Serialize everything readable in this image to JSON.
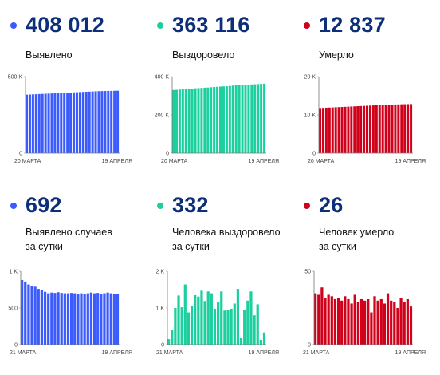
{
  "panels": [
    {
      "color": "#3b5bfd",
      "value": "408 012",
      "label": [
        "Выявлено"
      ],
      "chart_data": {
        "type": "bar",
        "y_ticks": [
          "0",
          "500 K"
        ],
        "ylim": [
          0,
          500000
        ],
        "x_start_label": "20 МАРТА",
        "x_end_label": "19 АПРЕЛЯ",
        "values": [
          382000,
          383000,
          384000,
          385000,
          386000,
          387000,
          388000,
          389000,
          390000,
          391000,
          392000,
          393000,
          394000,
          395000,
          396000,
          397000,
          398000,
          399000,
          400000,
          401000,
          402000,
          403000,
          404000,
          405000,
          405500,
          406000,
          406500,
          407000,
          407500,
          408012
        ]
      }
    },
    {
      "color": "#1ccf9f",
      "value": "363 116",
      "label": [
        "Выздоровело"
      ],
      "chart_data": {
        "type": "bar",
        "y_ticks": [
          "0",
          "200 K",
          "400 K"
        ],
        "ylim": [
          0,
          400000
        ],
        "x_start_label": "20 МАРТА",
        "x_end_label": "19 АПРЕЛЯ",
        "values": [
          330000,
          331000,
          332500,
          334000,
          335000,
          336000,
          337500,
          339000,
          340000,
          341000,
          342000,
          343000,
          344500,
          346000,
          347000,
          348000,
          349000,
          350000,
          351500,
          353000,
          354000,
          355000,
          356000,
          357000,
          358000,
          359000,
          360000,
          361000,
          362000,
          363116
        ]
      }
    },
    {
      "color": "#d0021b",
      "value": "12 837",
      "label": [
        "Умерло"
      ],
      "chart_data": {
        "type": "bar",
        "y_ticks": [
          "0",
          "10 K",
          "20 K"
        ],
        "ylim": [
          0,
          20000
        ],
        "x_start_label": "20 МАРТА",
        "x_end_label": "19 АПРЕЛЯ",
        "values": [
          11800,
          11840,
          11880,
          11920,
          11960,
          12000,
          12040,
          12080,
          12120,
          12160,
          12200,
          12240,
          12280,
          12320,
          12360,
          12400,
          12440,
          12480,
          12520,
          12560,
          12600,
          12630,
          12660,
          12690,
          12720,
          12750,
          12780,
          12800,
          12820,
          12837
        ]
      }
    },
    {
      "color": "#3b5bfd",
      "value": "692",
      "label": [
        "Выявлено случаев",
        "за сутки"
      ],
      "chart_data": {
        "type": "bar",
        "y_ticks": [
          "0",
          "500",
          "1 K"
        ],
        "ylim": [
          0,
          1000
        ],
        "x_start_label": "21 МАРТА",
        "x_end_label": "19 АПРЕЛЯ",
        "values": [
          880,
          860,
          820,
          800,
          790,
          760,
          740,
          720,
          700,
          710,
          705,
          715,
          705,
          700,
          700,
          705,
          700,
          695,
          700,
          690,
          700,
          710,
          700,
          705,
          695,
          700,
          710,
          700,
          690,
          692
        ]
      }
    },
    {
      "color": "#1ccf9f",
      "value": "332",
      "label": [
        "Человека выздоровело",
        "за сутки"
      ],
      "chart_data": {
        "type": "bar",
        "y_ticks": [
          "0",
          "1 K",
          "2 K"
        ],
        "ylim": [
          0,
          2000
        ],
        "x_start_label": "21 МАРТА",
        "x_end_label": "19 АПРЕЛЯ",
        "values": [
          150,
          400,
          1000,
          1340,
          1020,
          1640,
          880,
          1050,
          1350,
          1310,
          1470,
          1190,
          1450,
          1400,
          980,
          1150,
          1450,
          930,
          950,
          980,
          1120,
          1520,
          180,
          950,
          1200,
          1450,
          800,
          1100,
          130,
          332
        ]
      }
    },
    {
      "color": "#d0021b",
      "value": "26",
      "label": [
        "Человек умерло",
        "за сутки"
      ],
      "chart_data": {
        "type": "bar",
        "y_ticks": [
          "0",
          "50"
        ],
        "ylim": [
          0,
          50
        ],
        "x_start_label": "21 МАРТА",
        "x_end_label": "19 АПРЕЛЯ",
        "values": [
          35,
          34,
          39,
          32,
          34,
          33,
          31,
          32,
          30,
          33,
          31,
          28,
          34,
          29,
          31,
          30,
          31,
          22,
          33,
          30,
          31,
          28,
          35,
          30,
          29,
          25,
          32,
          29,
          31,
          26
        ]
      }
    }
  ]
}
